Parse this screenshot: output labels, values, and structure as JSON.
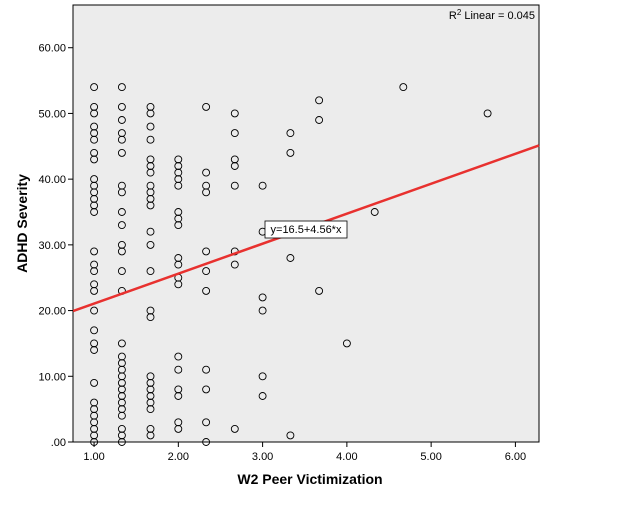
{
  "chart_data": {
    "type": "scatter",
    "title": "",
    "xlabel": "W2 Peer Victimization",
    "ylabel": "ADHD Severity",
    "xlim": [
      0.75,
      6.28
    ],
    "ylim": [
      0,
      66.5
    ],
    "x_ticks": [
      1,
      2,
      3,
      4,
      5,
      6
    ],
    "x_tick_labels": [
      "1.00",
      "2.00",
      "3.00",
      "4.00",
      "5.00",
      "6.00"
    ],
    "y_ticks": [
      0,
      10,
      20,
      30,
      40,
      50,
      60
    ],
    "y_tick_labels": [
      ".00",
      "10.00",
      "20.00",
      "30.00",
      "40.00",
      "50.00",
      "60.00"
    ],
    "grid": false,
    "background_color": "#ececec",
    "marker": "open-circle",
    "fit_line": {
      "intercept": 16.5,
      "slope": 4.56,
      "color": "#e8312f",
      "equation_label": "y=16.5+4.56*x"
    },
    "r2_label_prefix": "R",
    "r2_label_sup": "2",
    "r2_label_suffix": " Linear = 0.045",
    "points": [
      [
        1.0,
        54
      ],
      [
        1.0,
        51
      ],
      [
        1.0,
        50
      ],
      [
        1.0,
        48
      ],
      [
        1.0,
        47
      ],
      [
        1.0,
        46
      ],
      [
        1.0,
        44
      ],
      [
        1.0,
        43
      ],
      [
        1.0,
        40
      ],
      [
        1.0,
        39
      ],
      [
        1.0,
        38
      ],
      [
        1.0,
        37
      ],
      [
        1.0,
        36
      ],
      [
        1.0,
        35
      ],
      [
        1.0,
        29
      ],
      [
        1.0,
        27
      ],
      [
        1.0,
        26
      ],
      [
        1.0,
        24
      ],
      [
        1.0,
        23
      ],
      [
        1.0,
        20
      ],
      [
        1.0,
        17
      ],
      [
        1.0,
        15
      ],
      [
        1.0,
        14
      ],
      [
        1.0,
        9
      ],
      [
        1.0,
        6
      ],
      [
        1.0,
        5
      ],
      [
        1.0,
        4
      ],
      [
        1.0,
        3
      ],
      [
        1.0,
        2
      ],
      [
        1.0,
        1
      ],
      [
        1.0,
        0
      ],
      [
        1.33,
        54
      ],
      [
        1.33,
        51
      ],
      [
        1.33,
        49
      ],
      [
        1.33,
        47
      ],
      [
        1.33,
        46
      ],
      [
        1.33,
        44
      ],
      [
        1.33,
        39
      ],
      [
        1.33,
        38
      ],
      [
        1.33,
        35
      ],
      [
        1.33,
        33
      ],
      [
        1.33,
        30
      ],
      [
        1.33,
        29
      ],
      [
        1.33,
        26
      ],
      [
        1.33,
        23
      ],
      [
        1.33,
        15
      ],
      [
        1.33,
        13
      ],
      [
        1.33,
        12
      ],
      [
        1.33,
        11
      ],
      [
        1.33,
        10
      ],
      [
        1.33,
        9
      ],
      [
        1.33,
        8
      ],
      [
        1.33,
        7
      ],
      [
        1.33,
        6
      ],
      [
        1.33,
        5
      ],
      [
        1.33,
        4
      ],
      [
        1.33,
        2
      ],
      [
        1.33,
        1
      ],
      [
        1.33,
        0
      ],
      [
        1.67,
        51
      ],
      [
        1.67,
        50
      ],
      [
        1.67,
        48
      ],
      [
        1.67,
        46
      ],
      [
        1.67,
        43
      ],
      [
        1.67,
        42
      ],
      [
        1.67,
        41
      ],
      [
        1.67,
        39
      ],
      [
        1.67,
        38
      ],
      [
        1.67,
        37
      ],
      [
        1.67,
        36
      ],
      [
        1.67,
        32
      ],
      [
        1.67,
        30
      ],
      [
        1.67,
        26
      ],
      [
        1.67,
        20
      ],
      [
        1.67,
        19
      ],
      [
        1.67,
        10
      ],
      [
        1.67,
        9
      ],
      [
        1.67,
        8
      ],
      [
        1.67,
        7
      ],
      [
        1.67,
        6
      ],
      [
        1.67,
        5
      ],
      [
        1.67,
        2
      ],
      [
        1.67,
        1
      ],
      [
        2.0,
        43
      ],
      [
        2.0,
        42
      ],
      [
        2.0,
        41
      ],
      [
        2.0,
        40
      ],
      [
        2.0,
        39
      ],
      [
        2.0,
        35
      ],
      [
        2.0,
        34
      ],
      [
        2.0,
        33
      ],
      [
        2.0,
        28
      ],
      [
        2.0,
        27
      ],
      [
        2.0,
        25
      ],
      [
        2.0,
        24
      ],
      [
        2.0,
        13
      ],
      [
        2.0,
        11
      ],
      [
        2.0,
        8
      ],
      [
        2.0,
        7
      ],
      [
        2.0,
        3
      ],
      [
        2.0,
        2
      ],
      [
        2.33,
        51
      ],
      [
        2.33,
        41
      ],
      [
        2.33,
        39
      ],
      [
        2.33,
        38
      ],
      [
        2.33,
        29
      ],
      [
        2.33,
        26
      ],
      [
        2.33,
        23
      ],
      [
        2.33,
        11
      ],
      [
        2.33,
        8
      ],
      [
        2.33,
        3
      ],
      [
        2.33,
        0
      ],
      [
        2.67,
        50
      ],
      [
        2.67,
        47
      ],
      [
        2.67,
        43
      ],
      [
        2.67,
        42
      ],
      [
        2.67,
        39
      ],
      [
        2.67,
        29
      ],
      [
        2.67,
        27
      ],
      [
        2.67,
        2
      ],
      [
        3.0,
        39
      ],
      [
        3.0,
        32
      ],
      [
        3.0,
        22
      ],
      [
        3.0,
        20
      ],
      [
        3.0,
        10
      ],
      [
        3.0,
        7
      ],
      [
        3.33,
        47
      ],
      [
        3.33,
        44
      ],
      [
        3.33,
        28
      ],
      [
        3.33,
        1
      ],
      [
        3.67,
        52
      ],
      [
        3.67,
        49
      ],
      [
        3.67,
        23
      ],
      [
        4.0,
        15
      ],
      [
        4.33,
        35
      ],
      [
        4.67,
        54
      ],
      [
        5.67,
        50
      ]
    ]
  }
}
